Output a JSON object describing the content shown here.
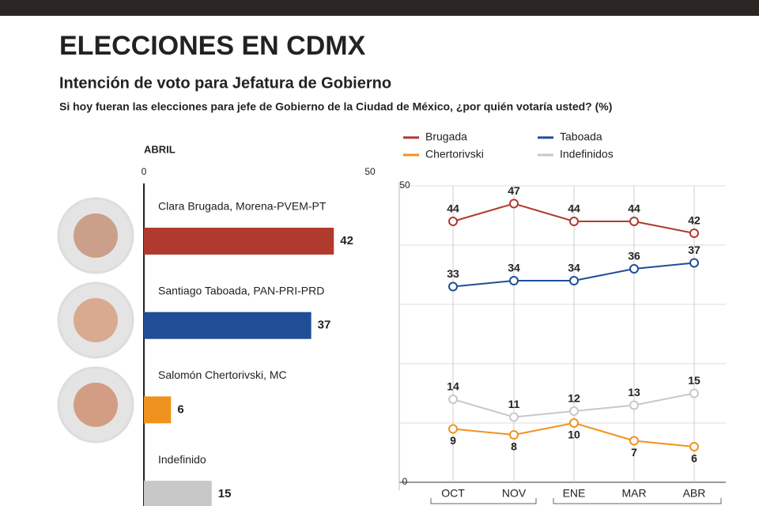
{
  "header": {
    "title": "ELECCIONES EN CDMX",
    "subtitle": "Intención de voto para Jefatura de Gobierno",
    "description": "Si hoy fueran las elecciones para jefe de Gobierno de la Ciudad de México, ¿por quién votaría usted? (%)"
  },
  "chart_data": [
    {
      "type": "hbar",
      "title": "ABRIL",
      "categories": [
        "Clara Brugada, Morena-PVEM-PT",
        "Santiago Taboada, PAN-PRI-PRD",
        "Salomón Chertorivski, MC",
        "Indefinido"
      ],
      "values": [
        42,
        37,
        6,
        15
      ],
      "colors": [
        "#b03a2e",
        "#1f4e97",
        "#f0921e",
        "#c8c8c8"
      ],
      "xlim": [
        0,
        50
      ],
      "xticks": [
        0,
        50
      ]
    },
    {
      "type": "line",
      "categories": [
        "OCT",
        "NOV",
        "ENE",
        "MAR",
        "ABR"
      ],
      "series": [
        {
          "name": "Brugada",
          "color": "#b03a2e",
          "values": [
            44,
            47,
            44,
            44,
            42
          ]
        },
        {
          "name": "Taboada",
          "color": "#1f4e97",
          "values": [
            33,
            34,
            34,
            36,
            37
          ]
        },
        {
          "name": "Chertorivski",
          "color": "#f0921e",
          "values": [
            9,
            8,
            10,
            7,
            6
          ]
        },
        {
          "name": "Indefinidos",
          "color": "#c8c8c8",
          "values": [
            14,
            11,
            12,
            13,
            15
          ]
        }
      ],
      "ylim": [
        0,
        50
      ],
      "yticks": [
        0,
        50
      ],
      "ygrid": [
        0,
        10,
        20,
        30,
        40,
        50
      ]
    }
  ]
}
